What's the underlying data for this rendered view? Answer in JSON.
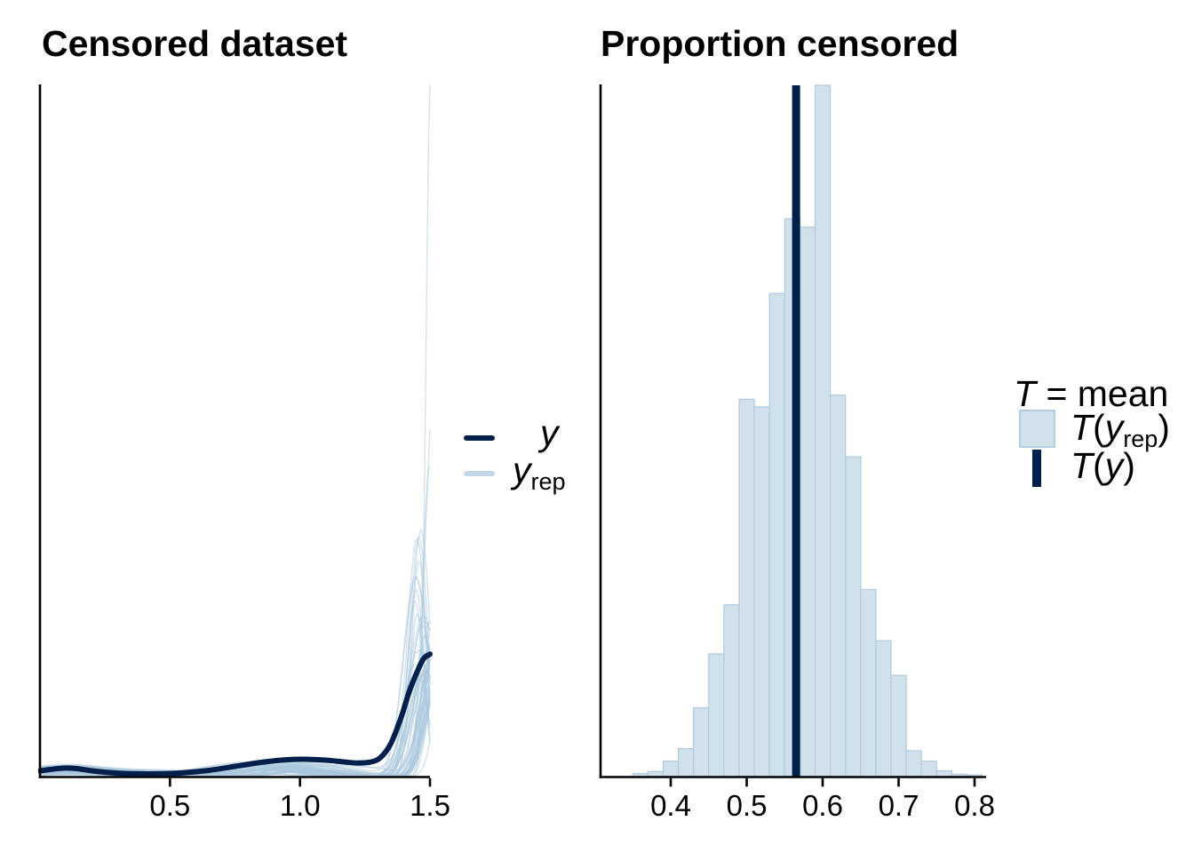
{
  "titles": {
    "left": "Censored dataset",
    "right": "Proportion censored"
  },
  "legend_left": {
    "y_label": "y",
    "yrep_base": "y",
    "yrep_sub": "rep"
  },
  "legend_right": {
    "title_symbol": "T",
    "title_rest": " = mean",
    "row1": {
      "t": "T",
      "open": "(",
      "var": "y",
      "sub": "rep",
      "close": ")"
    },
    "row2": {
      "t": "T",
      "open": "(",
      "var": "y",
      "close": ")"
    }
  },
  "colors": {
    "navy": "#011f4b",
    "hist_fill": "#d1e1ec",
    "hist_border": "#b3cde0",
    "rep_line": "#a9c7dd",
    "legend_rep_swatch": "#c3d7e6",
    "axis": "#000000",
    "text": "#000000"
  },
  "chart_data": [
    {
      "type": "line",
      "variant": "density-overlay",
      "title": "Censored dataset",
      "xlim": [
        0,
        1.5
      ],
      "x_ticks": [
        {
          "value": 0.5,
          "label": "0.5"
        },
        {
          "value": 1.0,
          "label": "1.0"
        },
        {
          "value": 1.5,
          "label": "1.5"
        }
      ],
      "y_axis": "density (unlabeled axis, plot height = 780 px units)",
      "legend_entries": [
        "y",
        "y_rep"
      ],
      "series_y": {
        "name": "y",
        "units": "[x data value, curve height above baseline in px units]",
        "points": [
          [
            0,
            7
          ],
          [
            0.04,
            8.5
          ],
          [
            0.09,
            10
          ],
          [
            0.14,
            9.5
          ],
          [
            0.2,
            7
          ],
          [
            0.28,
            4.8
          ],
          [
            0.36,
            3.7
          ],
          [
            0.45,
            3.6
          ],
          [
            0.55,
            4.8
          ],
          [
            0.65,
            7.5
          ],
          [
            0.75,
            12
          ],
          [
            0.85,
            16.5
          ],
          [
            0.95,
            19.5
          ],
          [
            1.02,
            20
          ],
          [
            1.1,
            19
          ],
          [
            1.17,
            17
          ],
          [
            1.22,
            15.8
          ],
          [
            1.27,
            16.8
          ],
          [
            1.31,
            22
          ],
          [
            1.35,
            38
          ],
          [
            1.39,
            68
          ],
          [
            1.42,
            96
          ],
          [
            1.45,
            118
          ],
          [
            1.475,
            133
          ],
          [
            1.5,
            138.3
          ]
        ]
      },
      "series_yrep": {
        "name": "y_rep",
        "count": 55,
        "seed": 11,
        "description": "light replicate density curves: near zero for x < 1.25 with small bumps near x = 0.9-1.1, steep peak near x = 1.45-1.5; peak heights mostly 100-230, a few 300-460, one thin spike clipped at the plot top (779)"
      }
    },
    {
      "type": "bar",
      "variant": "histogram",
      "title": "Proportion censored",
      "stat": "mean",
      "xlim": [
        0.307,
        0.815
      ],
      "x_ticks": [
        {
          "value": 0.4,
          "label": "0.4"
        },
        {
          "value": 0.5,
          "label": "0.5"
        },
        {
          "value": 0.6,
          "label": "0.6"
        },
        {
          "value": 0.7,
          "label": "0.7"
        },
        {
          "value": 0.8,
          "label": "0.8"
        }
      ],
      "bin_width": 0.02,
      "bin_centers": [
        0.36,
        0.38,
        0.4,
        0.42,
        0.44,
        0.46,
        0.48,
        0.5,
        0.52,
        0.54,
        0.56,
        0.58,
        0.6,
        0.62,
        0.64,
        0.66,
        0.68,
        0.7,
        0.72,
        0.74,
        0.76,
        0.78,
        0.8
      ],
      "relative_heights": [
        0.005,
        0.008,
        0.023,
        0.041,
        0.1,
        0.178,
        0.249,
        0.546,
        0.535,
        0.699,
        0.807,
        0.795,
        1.0,
        0.552,
        0.463,
        0.271,
        0.197,
        0.147,
        0.038,
        0.023,
        0.009,
        0.004,
        0.003
      ],
      "y_axis": "frequency of T(y_rep) (unlabeled axis); heights relative to tallest bar",
      "t_y": 0.565,
      "legend_entries": [
        "T(y_rep)",
        "T(y)"
      ]
    }
  ]
}
